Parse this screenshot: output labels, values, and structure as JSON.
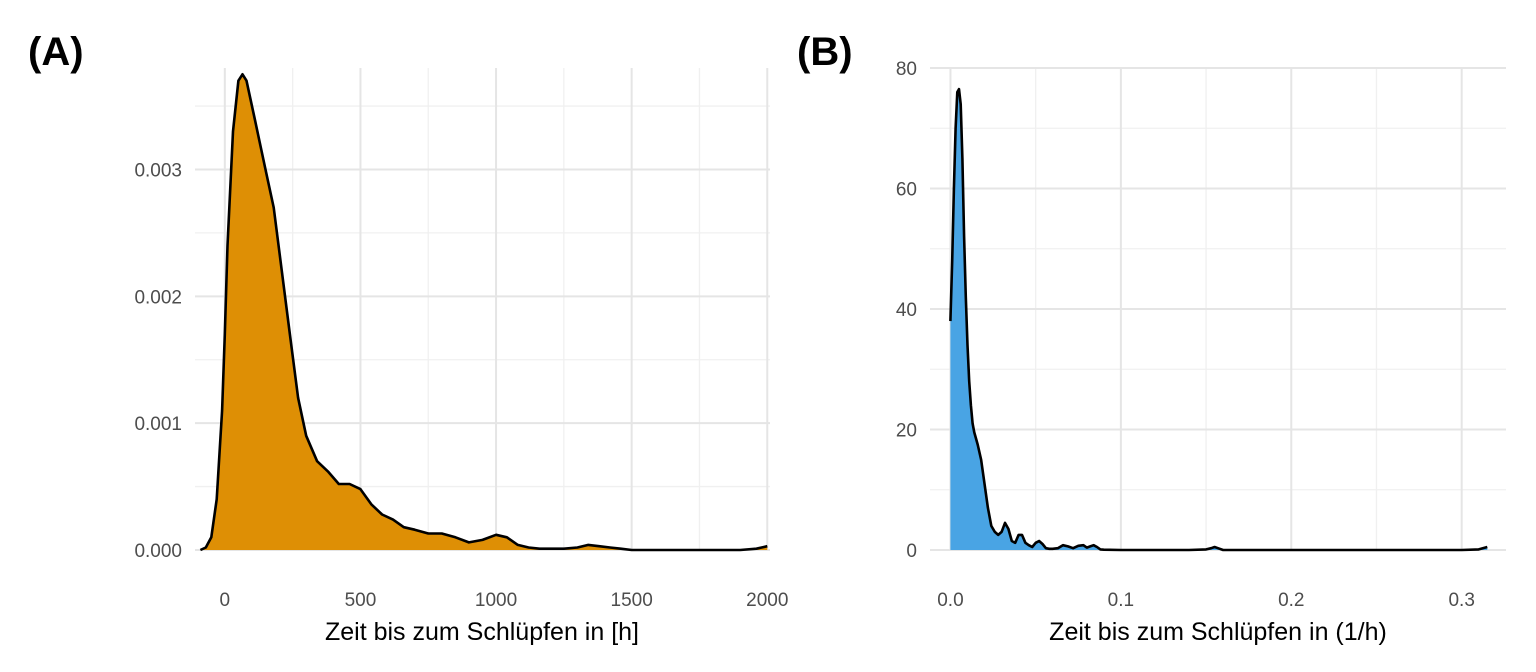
{
  "chart_data": [
    {
      "type": "area",
      "panel_label": "(A)",
      "xlabel": "Zeit bis zum Schlüpfen in [h]",
      "ylabel": "",
      "xlim": [
        -110,
        2010
      ],
      "ylim": [
        0,
        0.0038
      ],
      "x_ticks": [
        0,
        500,
        1000,
        1500,
        2000
      ],
      "x_tick_labels": [
        "0",
        "500",
        "1000",
        "1500",
        "2000"
      ],
      "y_ticks": [
        0,
        0.001,
        0.002,
        0.003
      ],
      "y_tick_labels": [
        "0.000",
        "0.001",
        "0.002",
        "0.003"
      ],
      "grid": true,
      "fill_color": "#DE8F05",
      "line_color": "#000000",
      "series": [
        {
          "x": [
            -90,
            -70,
            -50,
            -30,
            -10,
            0,
            10,
            30,
            50,
            65,
            80,
            95,
            110,
            130,
            150,
            180,
            210,
            240,
            270,
            300,
            340,
            380,
            420,
            460,
            500,
            540,
            580,
            620,
            660,
            700,
            750,
            800,
            850,
            900,
            950,
            1000,
            1040,
            1080,
            1120,
            1160,
            1200,
            1250,
            1300,
            1340,
            1380,
            1420,
            1460,
            1500,
            1600,
            1700,
            1800,
            1900,
            1960,
            2000
          ],
          "y": [
            0.0,
            2e-05,
            0.0001,
            0.0004,
            0.0011,
            0.0017,
            0.0024,
            0.0033,
            0.0037,
            0.00375,
            0.0037,
            0.00355,
            0.0034,
            0.0032,
            0.003,
            0.0027,
            0.0022,
            0.0017,
            0.0012,
            0.0009,
            0.0007,
            0.00062,
            0.00052,
            0.00052,
            0.00048,
            0.00036,
            0.00028,
            0.00024,
            0.00018,
            0.00016,
            0.00013,
            0.00013,
            0.0001,
            6e-05,
            8e-05,
            0.00012,
            0.0001,
            4e-05,
            2e-05,
            1e-05,
            1e-05,
            1e-05,
            2e-05,
            4e-05,
            3e-05,
            2e-05,
            1e-05,
            0.0,
            0.0,
            0.0,
            0.0,
            0.0,
            1e-05,
            3e-05
          ]
        }
      ]
    },
    {
      "type": "area",
      "panel_label": "(B)",
      "xlabel": "Zeit bis zum Schlüpfen in (1/h)",
      "ylabel": "",
      "xlim": [
        -0.012,
        0.326
      ],
      "ylim": [
        0,
        80
      ],
      "x_ticks": [
        0.0,
        0.1,
        0.2,
        0.3
      ],
      "x_tick_labels": [
        "0.0",
        "0.1",
        "0.2",
        "0.3"
      ],
      "y_ticks": [
        0,
        20,
        40,
        60,
        80
      ],
      "y_tick_labels": [
        "0",
        "20",
        "40",
        "60",
        "80"
      ],
      "grid": true,
      "fill_color": "#49A4E4",
      "line_color": "#000000",
      "series": [
        {
          "x": [
            0.0,
            0.001,
            0.002,
            0.003,
            0.004,
            0.005,
            0.006,
            0.007,
            0.008,
            0.009,
            0.01,
            0.011,
            0.012,
            0.013,
            0.014,
            0.015,
            0.016,
            0.018,
            0.02,
            0.022,
            0.024,
            0.026,
            0.028,
            0.03,
            0.032,
            0.034,
            0.036,
            0.038,
            0.04,
            0.042,
            0.044,
            0.046,
            0.048,
            0.05,
            0.052,
            0.054,
            0.056,
            0.058,
            0.06,
            0.063,
            0.066,
            0.069,
            0.072,
            0.075,
            0.078,
            0.08,
            0.082,
            0.084,
            0.086,
            0.088,
            0.09,
            0.1,
            0.12,
            0.14,
            0.15,
            0.153,
            0.155,
            0.157,
            0.16,
            0.18,
            0.2,
            0.25,
            0.3,
            0.31,
            0.315
          ],
          "y": [
            38,
            48,
            60,
            70,
            76,
            76.5,
            74,
            65,
            52,
            42,
            34,
            28,
            24,
            21,
            19.5,
            18.5,
            17.5,
            15,
            11,
            7,
            4,
            3,
            2.5,
            3,
            4.5,
            3.5,
            1.5,
            1.2,
            2.5,
            2.5,
            1.2,
            0.8,
            0.5,
            1.2,
            1.5,
            1.0,
            0.3,
            0.2,
            0.2,
            0.3,
            0.8,
            0.6,
            0.3,
            0.7,
            0.8,
            0.4,
            0.6,
            0.8,
            0.5,
            0.1,
            0.05,
            0.0,
            0.0,
            0.0,
            0.1,
            0.3,
            0.5,
            0.3,
            0.0,
            0.0,
            0.0,
            0.0,
            0.0,
            0.1,
            0.5
          ]
        }
      ]
    }
  ]
}
